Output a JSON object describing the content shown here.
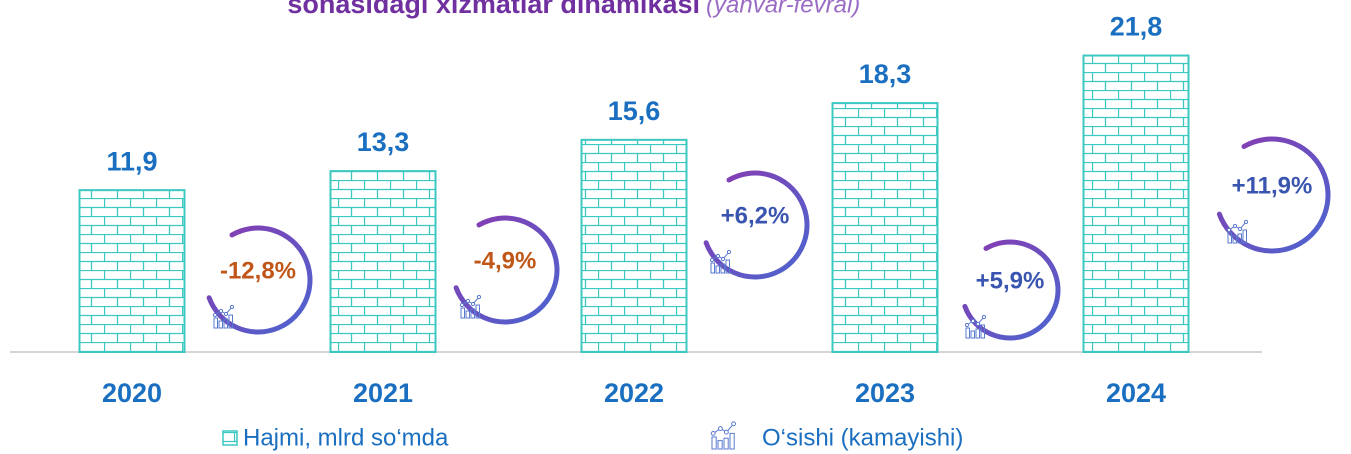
{
  "chart_data": {
    "type": "bar",
    "title": "sohasidagi xizmatlar dinamikasi",
    "subtitle": "(yanvar-fevral)",
    "categories": [
      "2020",
      "2021",
      "2022",
      "2023",
      "2024"
    ],
    "series": [
      {
        "name": "Hajmi, mlrd so‘mda",
        "color": "#3cc8c0",
        "values": [
          11.9,
          13.3,
          15.6,
          18.3,
          21.8
        ],
        "value_labels": [
          "11,9",
          "13,3",
          "15,6",
          "18,3",
          "21,8"
        ]
      },
      {
        "name": "O‘sishi (kamayishi)",
        "color": "#4a5fd0",
        "values": [
          -12.8,
          -4.9,
          6.2,
          5.9,
          11.9
        ],
        "value_labels": [
          "-12,8%",
          "-4,9%",
          "+6,2%",
          "+5,9%",
          "+11,9%"
        ]
      }
    ],
    "ylim": [
      0,
      25
    ]
  }
}
